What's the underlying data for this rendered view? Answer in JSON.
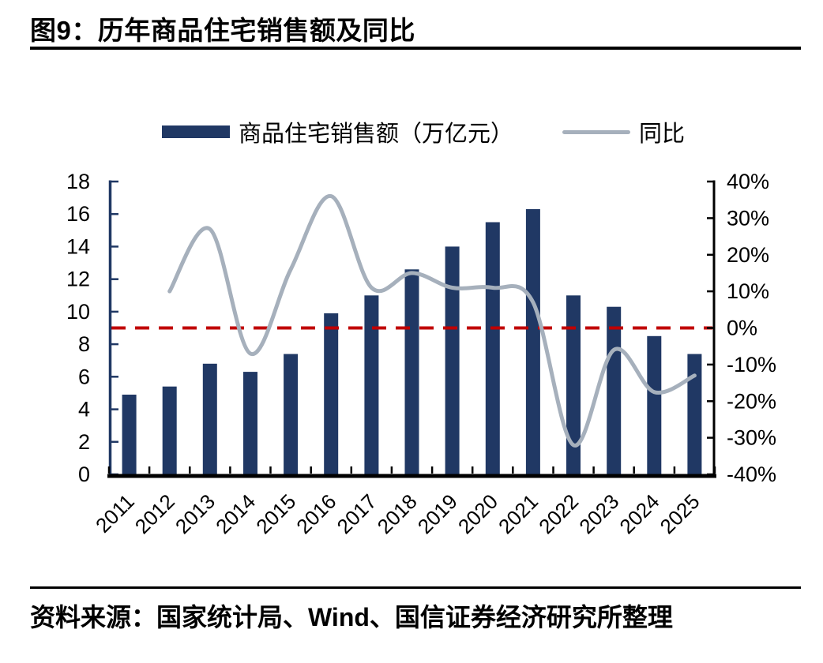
{
  "page": {
    "title": "图9：历年商品住宅销售额及同比",
    "source_note": "资料来源：国家统计局、Wind、国信证券经济研究所整理"
  },
  "colors": {
    "bar": "#203864",
    "line": "#A6B0BC",
    "reference": "#C00000",
    "axis_left": "#203864",
    "axis_black": "#000000"
  },
  "legend": {
    "items": [
      {
        "label": "商品住宅销售额（万亿元）",
        "marker": "bar",
        "color": "#203864"
      },
      {
        "label": "同比",
        "marker": "line",
        "color": "#A6B0BC"
      }
    ]
  },
  "chart_data": {
    "type": "combo",
    "title": "图9：历年商品住宅销售额及同比",
    "categories": [
      "2011",
      "2012",
      "2013",
      "2014",
      "2015",
      "2016",
      "2017",
      "2018",
      "2019",
      "2020",
      "2021",
      "2022",
      "2023",
      "2024",
      "2025"
    ],
    "series": [
      {
        "name": "商品住宅销售额（万亿元）",
        "type": "bar",
        "axis": "left",
        "unit": "万亿元",
        "color": "#203864",
        "values": [
          4.9,
          5.4,
          6.8,
          6.3,
          7.4,
          9.9,
          11.0,
          12.6,
          14.0,
          15.5,
          16.3,
          11.0,
          10.3,
          8.5,
          7.4
        ]
      },
      {
        "name": "同比",
        "type": "line",
        "axis": "right",
        "unit": "%",
        "color": "#A6B0BC",
        "values": [
          null,
          10,
          27,
          -7,
          16,
          36,
          11,
          15,
          11,
          11,
          7,
          -32,
          -6,
          -17.5,
          -13
        ]
      }
    ],
    "left_axis": {
      "min": 0,
      "max": 18,
      "step": 2,
      "tick_labels": [
        "18",
        "16",
        "14",
        "12",
        "10",
        "8",
        "6",
        "4",
        "2",
        "0"
      ]
    },
    "right_axis": {
      "min": -40,
      "max": 40,
      "step": 10,
      "tick_labels": [
        "40%",
        "30%",
        "20%",
        "10%",
        "0%",
        "-10%",
        "-20%",
        "-30%",
        "-40%"
      ]
    },
    "reference_line": {
      "axis": "right",
      "value": 0,
      "color": "#C00000",
      "style": "dashed"
    },
    "grid": false,
    "legend_position": "top"
  }
}
